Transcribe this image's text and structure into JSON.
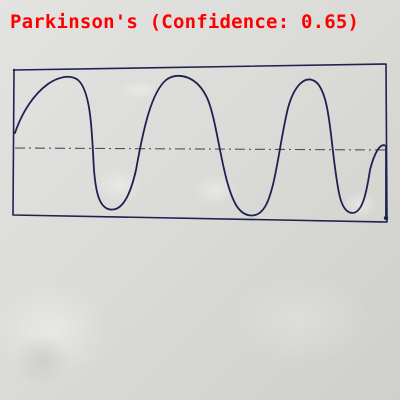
{
  "image": {
    "subject": "hand-drawn sine wave spiral test sketch on paper",
    "paper_color": "#d8d8d5",
    "ink_color": "#1f2250",
    "centerline_color": "#4a5060"
  },
  "annotation": {
    "text": "Parkinson's (Confidence: 0.65)",
    "color": "#ff0000"
  }
}
